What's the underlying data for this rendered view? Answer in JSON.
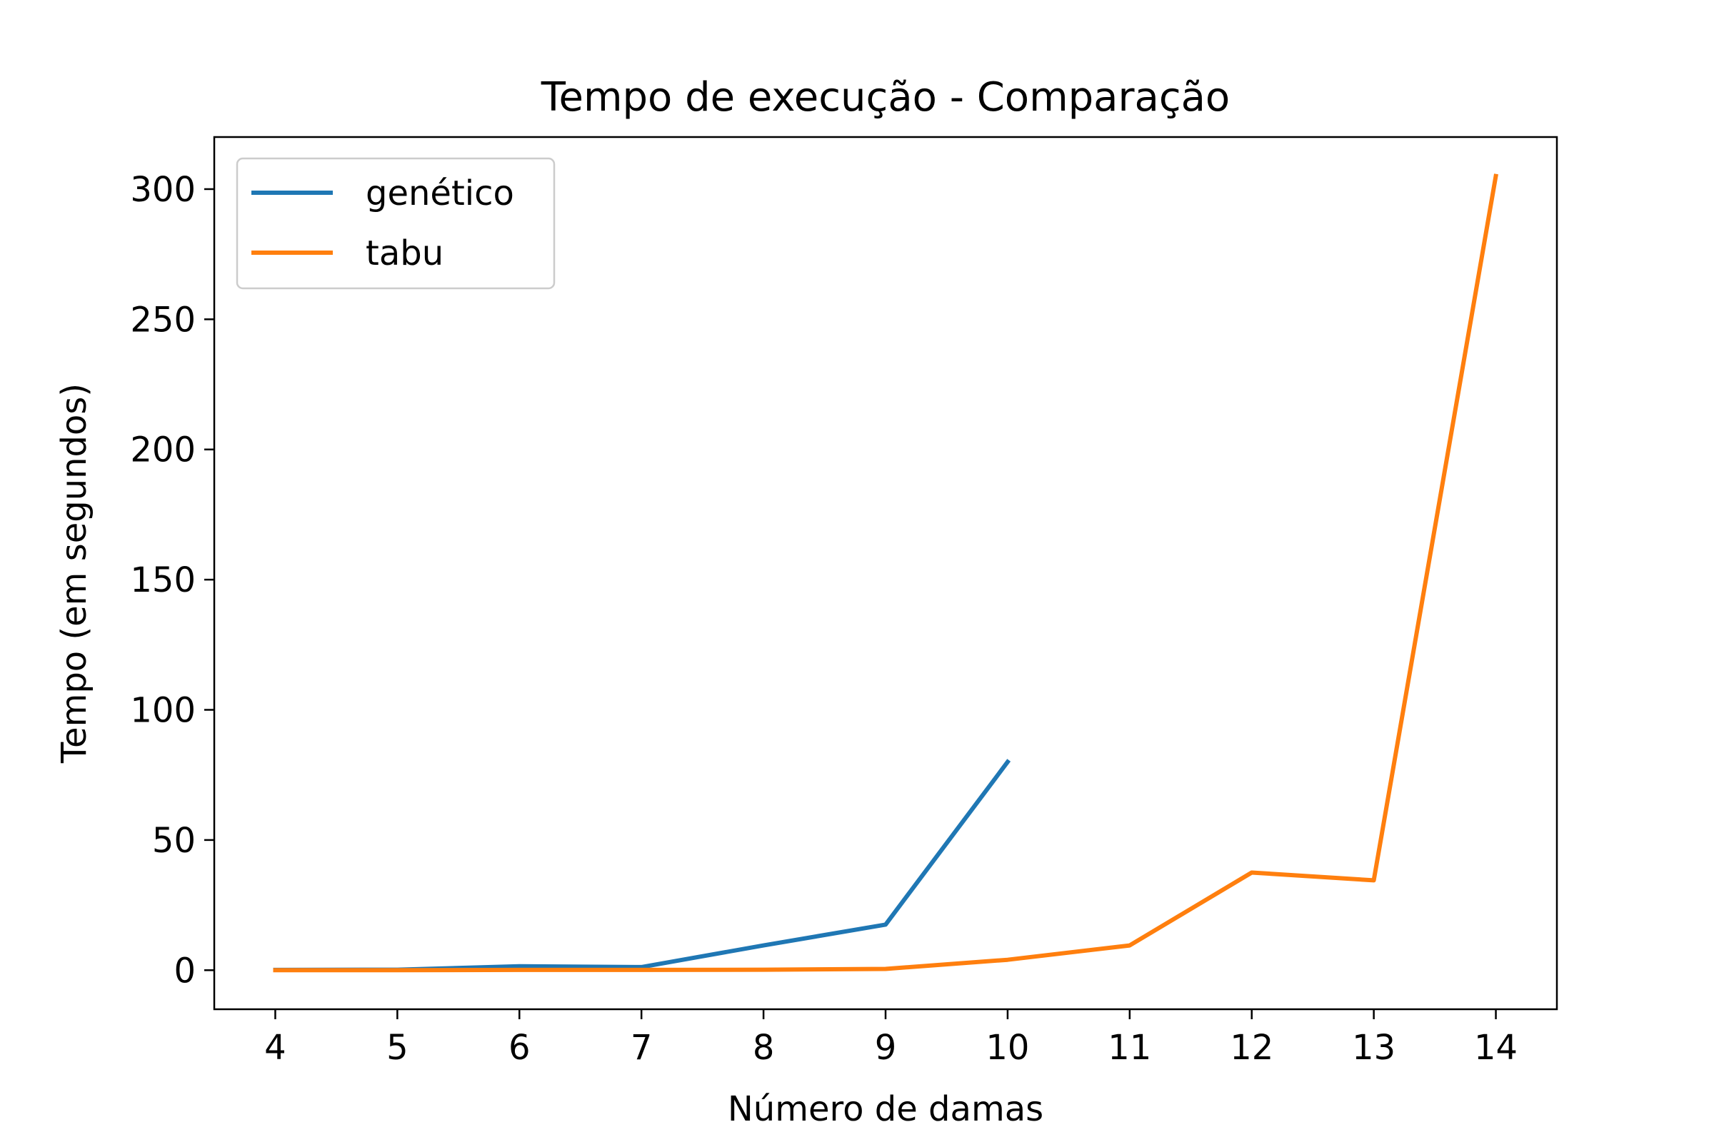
{
  "chart_data": {
    "type": "line",
    "title": "Tempo de execução - Comparação",
    "xlabel": "Número de damas",
    "ylabel": "Tempo (em segundos)",
    "xlim": [
      3.5,
      14.5
    ],
    "ylim": [
      -15,
      320
    ],
    "x_ticks": [
      4,
      5,
      6,
      7,
      8,
      9,
      10,
      11,
      12,
      13,
      14
    ],
    "y_ticks": [
      0,
      50,
      100,
      150,
      200,
      250,
      300
    ],
    "grid": false,
    "legend_position": "upper-left",
    "series": [
      {
        "name": "genético",
        "color": "#1f77b4",
        "x": [
          4,
          5,
          6,
          7,
          8,
          9,
          10
        ],
        "y": [
          0.1,
          0.2,
          1.5,
          1.2,
          9.5,
          17.5,
          80
        ]
      },
      {
        "name": "tabu",
        "color": "#ff7f0e",
        "x": [
          4,
          5,
          6,
          7,
          8,
          9,
          10,
          11,
          12,
          13,
          14
        ],
        "y": [
          0.0,
          0.0,
          0.1,
          0.1,
          0.2,
          0.5,
          4.0,
          9.5,
          37.5,
          34.5,
          305
        ]
      }
    ]
  }
}
